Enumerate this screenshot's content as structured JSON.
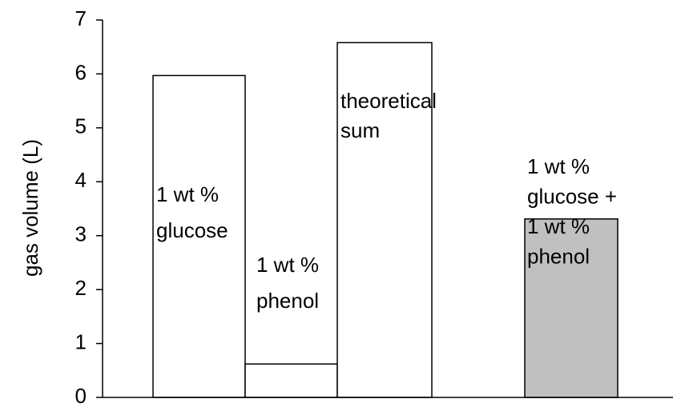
{
  "chart_data": {
    "type": "bar",
    "y_label": "gas volume (L)",
    "categories": [
      [
        "1 wt %",
        "glucose"
      ],
      [
        "1 wt %",
        "phenol"
      ],
      [
        "theoretical",
        "sum"
      ],
      [
        "1 wt %",
        "glucose +",
        "1 wt %",
        "phenol"
      ]
    ],
    "values": [
      5.97,
      0.62,
      6.58,
      3.31
    ],
    "colors": [
      "#ffffff",
      "#ffffff",
      "#ffffff",
      "#c0c0c0"
    ],
    "ylim": [
      0,
      7
    ],
    "yticks": [
      0,
      1,
      2,
      3,
      4,
      5,
      6,
      7
    ],
    "grid": false
  }
}
